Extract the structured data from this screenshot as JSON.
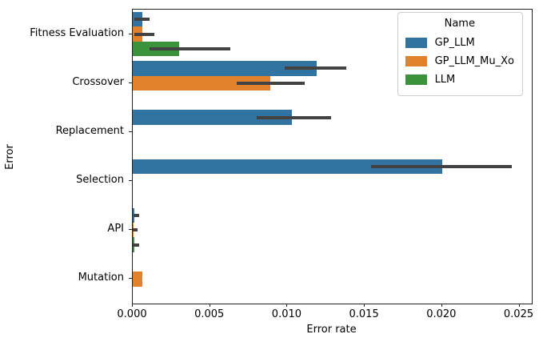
{
  "chart_data": {
    "type": "bar",
    "orientation": "horizontal",
    "title": "",
    "xlabel": "Error rate",
    "ylabel": "Error",
    "categories": [
      "Fitness Evaluation",
      "Crossover",
      "Replacement",
      "Selection",
      "API",
      "Mutation"
    ],
    "x_ticks": [
      "0.000",
      "0.005",
      "0.010",
      "0.015",
      "0.020",
      "0.025"
    ],
    "xlim": [
      0,
      0.0258
    ],
    "grid": false,
    "legend": {
      "title": "Name",
      "position": "upper right"
    },
    "error_bar_color": "#424242",
    "series": [
      {
        "name": "GP_LLM",
        "color": "#3274a1",
        "values": [
          0.0006,
          0.0119,
          0.0103,
          0.02,
          0.0001,
          0
        ],
        "ci_low": [
          0.0001,
          0.0098,
          0.008,
          0.0154,
          5e-05,
          null
        ],
        "ci_high": [
          0.0011,
          0.0138,
          0.0128,
          0.0245,
          0.0004,
          null
        ]
      },
      {
        "name": "GP_LLM_Mu_Xo",
        "color": "#e1812c",
        "values": [
          0.0006,
          0.0089,
          0,
          0,
          5e-05,
          0.0006
        ],
        "ci_low": [
          0.0001,
          0.0067,
          null,
          null,
          0.0,
          null
        ],
        "ci_high": [
          0.0014,
          0.0111,
          null,
          null,
          0.0003,
          null
        ]
      },
      {
        "name": "LLM",
        "color": "#3a923a",
        "values": [
          0.003,
          0,
          0,
          0,
          0.0001,
          0
        ],
        "ci_low": [
          0.0011,
          null,
          null,
          null,
          0.0,
          null
        ],
        "ci_high": [
          0.0063,
          null,
          null,
          null,
          0.0004,
          null
        ]
      }
    ]
  }
}
